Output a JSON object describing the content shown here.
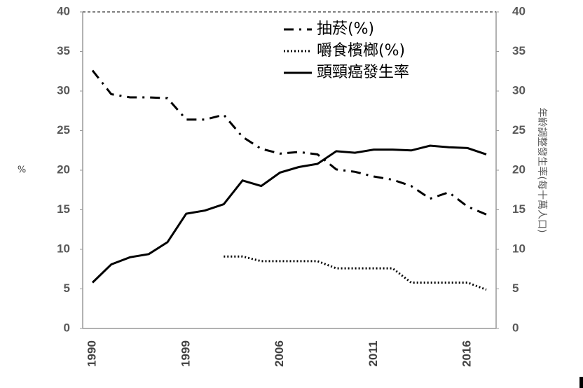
{
  "chart_data": {
    "type": "line",
    "y_label": "%",
    "y2_label": "年齡調整發生率(每十萬人口)",
    "categories": [
      "1990",
      null,
      null,
      null,
      null,
      "1999",
      null,
      null,
      null,
      null,
      "2006",
      null,
      null,
      null,
      null,
      "2011",
      null,
      null,
      null,
      null,
      "2016",
      null
    ],
    "series": [
      {
        "name": "抽菸(%)",
        "color": "#000000",
        "style": "dashdot",
        "values": [
          32.6,
          29.6,
          29.2,
          29.2,
          29.1,
          26.4,
          26.4,
          27.0,
          24.2,
          22.7,
          22.1,
          22.3,
          22.0,
          20.1,
          19.8,
          19.2,
          18.8,
          18.0,
          16.4,
          17.2,
          15.4,
          14.4
        ]
      },
      {
        "name": "嚼食檳榔(%)",
        "color": "#000000",
        "style": "dotted",
        "values": [
          null,
          null,
          null,
          null,
          null,
          null,
          null,
          9.1,
          9.1,
          8.5,
          8.5,
          8.5,
          8.5,
          7.6,
          7.6,
          7.6,
          7.6,
          5.8,
          5.8,
          5.8,
          5.8,
          4.9
        ]
      },
      {
        "name": "頭頸癌發生率",
        "color": "#000000",
        "style": "solid",
        "axis": "y2",
        "values": [
          5.8,
          8.1,
          9.0,
          9.4,
          10.9,
          14.5,
          14.9,
          15.7,
          18.7,
          18.0,
          19.7,
          20.4,
          20.8,
          22.4,
          22.2,
          22.6,
          22.6,
          22.5,
          23.1,
          22.9,
          22.8,
          22.0
        ]
      }
    ],
    "ylim": [
      0,
      40
    ],
    "yticks": [
      0,
      5,
      10,
      15,
      20,
      25,
      30,
      35,
      40
    ],
    "y2lim": [
      0,
      40
    ],
    "y2ticks": [
      0,
      5,
      10,
      15,
      20,
      25,
      30,
      35,
      40
    ]
  }
}
